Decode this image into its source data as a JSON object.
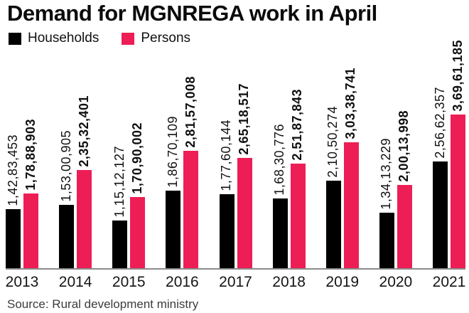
{
  "title": "Demand for MGNREGA work in April",
  "legend": {
    "items": [
      {
        "label": "Households",
        "color": "#000000"
      },
      {
        "label": "Persons",
        "color": "#ED1E55"
      }
    ]
  },
  "source": "Source: Rural development ministry",
  "colors": {
    "households_bar": "#000000",
    "persons_bar": "#ED1E55",
    "axis_line": "#8C8C8C",
    "text": "#0B0B0B"
  },
  "chart_data": {
    "type": "bar",
    "title": "Demand for MGNREGA work in April",
    "categories": [
      "2013",
      "2014",
      "2015",
      "2016",
      "2017",
      "2018",
      "2019",
      "2020",
      "2021"
    ],
    "series": [
      {
        "name": "Households",
        "color": "#000000",
        "values": [
          14283453,
          15300905,
          11512127,
          18670109,
          17760144,
          16830776,
          21050274,
          13413229,
          25662357
        ],
        "labels": [
          "1,42,83,453",
          "1,53,00,905",
          "1,15,12,127",
          "1,86,70,109",
          "1,77,60,144",
          "1,68,30,776",
          "2,10,50,274",
          "1,34,13,229",
          "2,56,62,357"
        ]
      },
      {
        "name": "Persons",
        "color": "#ED1E55",
        "values": [
          17888903,
          23532401,
          17090002,
          28157008,
          26518517,
          25187843,
          30338741,
          20013998,
          36961185
        ],
        "labels": [
          "1,78,88,903",
          "2,35,32,401",
          "1,70,90,002",
          "2,81,57,008",
          "2,65,18,517",
          "2,51,87,843",
          "3,03,38,741",
          "2,00,13,998",
          "3,69,61,185"
        ]
      }
    ],
    "xlabel": "",
    "ylabel": "",
    "grid": false,
    "legend_position": "top-left",
    "value_label_rotation": 90,
    "source": "Source: Rural development ministry"
  }
}
